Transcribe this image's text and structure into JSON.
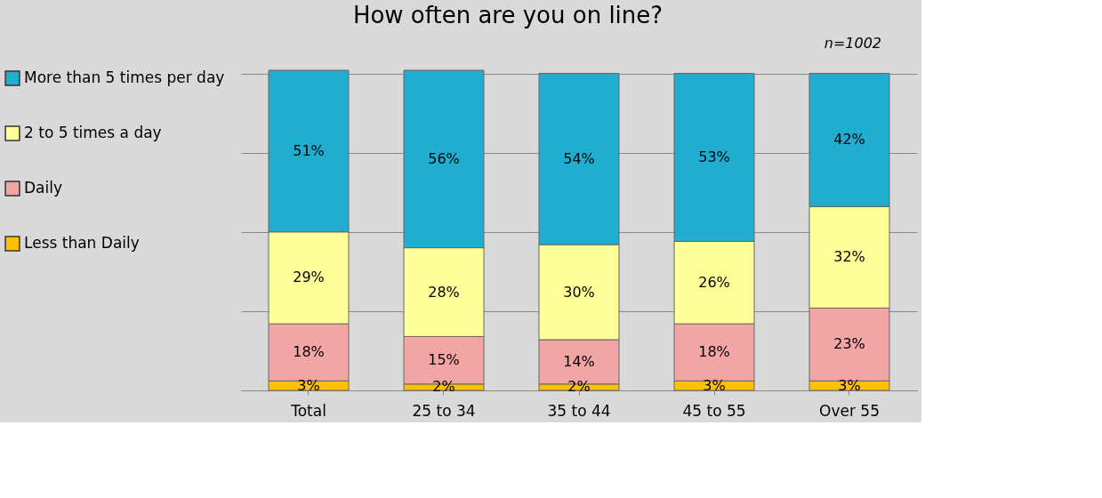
{
  "chart_data": {
    "type": "bar",
    "title": "How often are you on line?",
    "annotations": [
      "n=1002"
    ],
    "stacked": true,
    "categories": [
      "Total",
      "25 to 34",
      "35 to 44",
      "45 to 55",
      "Over 55"
    ],
    "series": [
      {
        "name": "Less than Daily",
        "color": "#ffc000",
        "values": [
          3,
          2,
          2,
          3,
          3
        ],
        "value_labels": [
          "3%",
          "2%",
          "2%",
          "3%",
          "3%"
        ]
      },
      {
        "name": "Daily",
        "color": "#f2a5a5",
        "values": [
          18,
          15,
          14,
          18,
          23
        ],
        "value_labels": [
          "18%",
          "15%",
          "14%",
          "18%",
          "23%"
        ]
      },
      {
        "name": "2 to 5 times a day",
        "color": "#ffff99",
        "values": [
          29,
          28,
          30,
          26,
          32
        ],
        "value_labels": [
          "29%",
          "28%",
          "30%",
          "26%",
          "32%"
        ]
      },
      {
        "name": "More than 5 times per day",
        "color": "#1fadd0",
        "values": [
          51,
          56,
          54,
          53,
          42
        ],
        "value_labels": [
          "51%",
          "56%",
          "54%",
          "53%",
          "42%"
        ]
      }
    ],
    "ylim": [
      0,
      101
    ],
    "yticks": [
      {
        "value": 0,
        "label": null
      },
      {
        "value": 25,
        "label": null
      },
      {
        "value": 50,
        "label": null
      },
      {
        "value": 75,
        "label": null
      },
      {
        "value": 100,
        "label": null
      }
    ],
    "tick_labels": "x",
    "grid": "y",
    "legend": "left"
  }
}
